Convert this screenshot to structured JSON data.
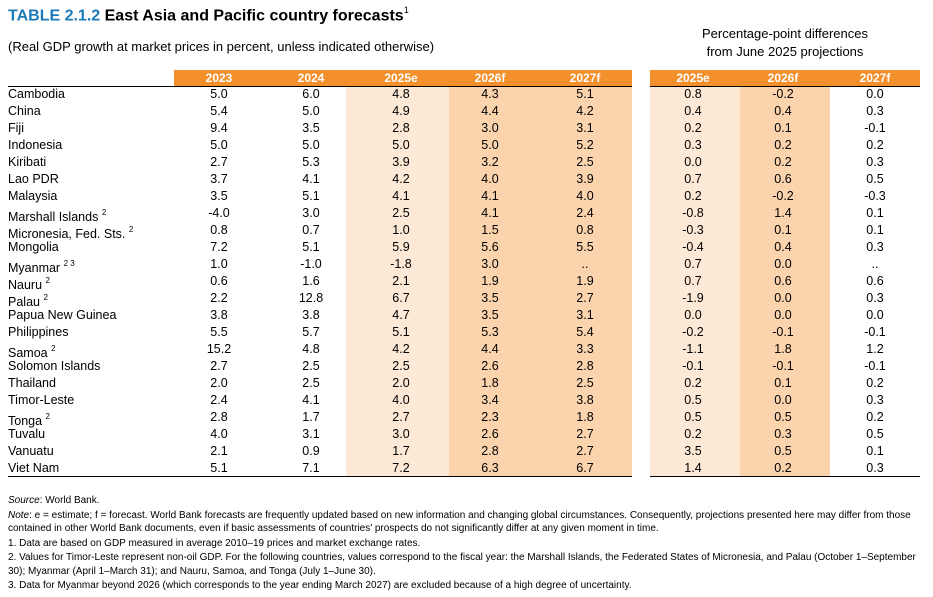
{
  "title": {
    "number": "TABLE 2.1.2",
    "text": "East Asia and Pacific country forecasts",
    "note_ref": "1"
  },
  "subtitle": "(Real GDP growth at market prices in percent, unless indicated otherwise)",
  "diff_header": {
    "line1": "Percentage-point differences",
    "line2": "from June 2025 projections"
  },
  "columns": [
    "2023",
    "2024",
    "2025e",
    "2026f",
    "2027f"
  ],
  "diff_columns": [
    "2025e",
    "2026f",
    "2027f"
  ],
  "colors": {
    "header_orange": "#f4902c",
    "light_peach": "#fde9d6",
    "peach": "#fbd3ad"
  },
  "rows": [
    {
      "country": "Cambodia",
      "sup": "",
      "values": [
        "5.0",
        "6.0",
        "4.8",
        "4.3",
        "5.1"
      ],
      "diffs": [
        "0.8",
        "-0.2",
        "0.0"
      ]
    },
    {
      "country": "China",
      "sup": "",
      "values": [
        "5.4",
        "5.0",
        "4.9",
        "4.4",
        "4.2"
      ],
      "diffs": [
        "0.4",
        "0.4",
        "0.3"
      ]
    },
    {
      "country": "Fiji",
      "sup": "",
      "values": [
        "9.4",
        "3.5",
        "2.8",
        "3.0",
        "3.1"
      ],
      "diffs": [
        "0.2",
        "0.1",
        "-0.1"
      ]
    },
    {
      "country": "Indonesia",
      "sup": "",
      "values": [
        "5.0",
        "5.0",
        "5.0",
        "5.0",
        "5.2"
      ],
      "diffs": [
        "0.3",
        "0.2",
        "0.2"
      ]
    },
    {
      "country": "Kiribati",
      "sup": "",
      "values": [
        "2.7",
        "5.3",
        "3.9",
        "3.2",
        "2.5"
      ],
      "diffs": [
        "0.0",
        "0.2",
        "0.3"
      ]
    },
    {
      "country": "Lao PDR",
      "sup": "",
      "values": [
        "3.7",
        "4.1",
        "4.2",
        "4.0",
        "3.9"
      ],
      "diffs": [
        "0.7",
        "0.6",
        "0.5"
      ]
    },
    {
      "country": "Malaysia",
      "sup": "",
      "values": [
        "3.5",
        "5.1",
        "4.1",
        "4.1",
        "4.0"
      ],
      "diffs": [
        "0.2",
        "-0.2",
        "-0.3"
      ]
    },
    {
      "country": "Marshall Islands",
      "sup": "2",
      "values": [
        "-4.0",
        "3.0",
        "2.5",
        "4.1",
        "2.4"
      ],
      "diffs": [
        "-0.8",
        "1.4",
        "0.1"
      ]
    },
    {
      "country": "Micronesia, Fed. Sts.",
      "sup": "2",
      "values": [
        "0.8",
        "0.7",
        "1.0",
        "1.5",
        "0.8"
      ],
      "diffs": [
        "-0.3",
        "0.1",
        "0.1"
      ]
    },
    {
      "country": "Mongolia",
      "sup": "",
      "values": [
        "7.2",
        "5.1",
        "5.9",
        "5.6",
        "5.5"
      ],
      "diffs": [
        "-0.4",
        "0.4",
        "0.3"
      ]
    },
    {
      "country": "Myanmar",
      "sup": "2 3",
      "values": [
        "1.0",
        "-1.0",
        "-1.8",
        "3.0",
        ".."
      ],
      "diffs": [
        "0.7",
        "0.0",
        ".."
      ]
    },
    {
      "country": "Nauru",
      "sup": "2",
      "values": [
        "0.6",
        "1.6",
        "2.1",
        "1.9",
        "1.9"
      ],
      "diffs": [
        "0.7",
        "0.6",
        "0.6"
      ]
    },
    {
      "country": "Palau",
      "sup": "2",
      "values": [
        "2.2",
        "12.8",
        "6.7",
        "3.5",
        "2.7"
      ],
      "diffs": [
        "-1.9",
        "0.0",
        "0.3"
      ]
    },
    {
      "country": "Papua New Guinea",
      "sup": "",
      "values": [
        "3.8",
        "3.8",
        "4.7",
        "3.5",
        "3.1"
      ],
      "diffs": [
        "0.0",
        "0.0",
        "0.0"
      ]
    },
    {
      "country": "Philippines",
      "sup": "",
      "values": [
        "5.5",
        "5.7",
        "5.1",
        "5.3",
        "5.4"
      ],
      "diffs": [
        "-0.2",
        "-0.1",
        "-0.1"
      ]
    },
    {
      "country": "Samoa",
      "sup": "2",
      "values": [
        "15.2",
        "4.8",
        "4.2",
        "4.4",
        "3.3"
      ],
      "diffs": [
        "-1.1",
        "1.8",
        "1.2"
      ]
    },
    {
      "country": "Solomon Islands",
      "sup": "",
      "values": [
        "2.7",
        "2.5",
        "2.5",
        "2.6",
        "2.8"
      ],
      "diffs": [
        "-0.1",
        "-0.1",
        "-0.1"
      ]
    },
    {
      "country": "Thailand",
      "sup": "",
      "values": [
        "2.0",
        "2.5",
        "2.0",
        "1.8",
        "2.5"
      ],
      "diffs": [
        "0.2",
        "0.1",
        "0.2"
      ]
    },
    {
      "country": "Timor-Leste",
      "sup": "",
      "values": [
        "2.4",
        "4.1",
        "4.0",
        "3.4",
        "3.8"
      ],
      "diffs": [
        "0.5",
        "0.0",
        "0.3"
      ]
    },
    {
      "country": "Tonga",
      "sup": "2",
      "values": [
        "2.8",
        "1.7",
        "2.7",
        "2.3",
        "1.8"
      ],
      "diffs": [
        "0.5",
        "0.5",
        "0.2"
      ]
    },
    {
      "country": "Tuvalu",
      "sup": "",
      "values": [
        "4.0",
        "3.1",
        "3.0",
        "2.6",
        "2.7"
      ],
      "diffs": [
        "0.2",
        "0.3",
        "0.5"
      ]
    },
    {
      "country": "Vanuatu",
      "sup": "",
      "values": [
        "2.1",
        "0.9",
        "1.7",
        "2.8",
        "2.7"
      ],
      "diffs": [
        "3.5",
        "0.5",
        "0.1"
      ]
    },
    {
      "country": "Viet Nam",
      "sup": "",
      "values": [
        "5.1",
        "7.1",
        "7.2",
        "6.3",
        "6.7"
      ],
      "diffs": [
        "1.4",
        "0.2",
        "0.3"
      ]
    }
  ],
  "notes": {
    "source_label": "Source",
    "source_text": ": World Bank.",
    "note_label": "Note",
    "note_text": ": e = estimate; f = forecast. World Bank forecasts are frequently updated based on new information and changing global circumstances. Consequently, projections presented here may differ from those contained in other World Bank documents, even if basic assessments of countries’ prospects do not significantly differ at any given moment in time.",
    "n1": "1. Data are based on GDP measured in average 2010–19 prices and market exchange rates.",
    "n2": "2. Values for Timor-Leste represent non-oil GDP. For the following countries, values correspond to the fiscal year: the Marshall Islands, the Federated States of Micronesia, and Palau (October 1–September 30); Myanmar (April 1–March 31); and Nauru, Samoa, and Tonga (July 1–June 30).",
    "n3": "3. Data for Myanmar beyond 2026 (which corresponds to the year ending March 2027) are excluded because of a high degree of uncertainty."
  }
}
